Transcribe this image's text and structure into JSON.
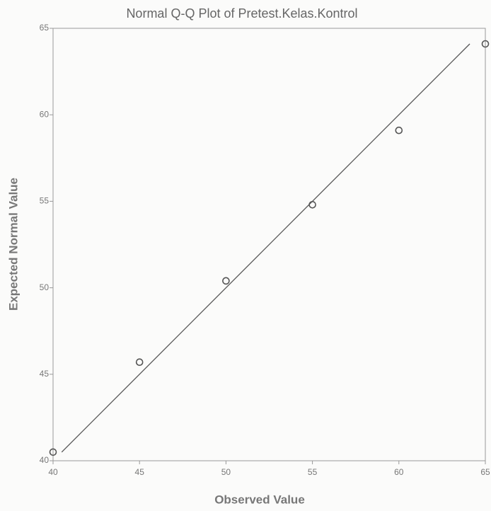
{
  "chart_data": {
    "type": "scatter",
    "title": "Normal Q-Q Plot of Pretest.Kelas.Kontrol",
    "x_label": "Observed Value",
    "y_label": "Expected Normal Value",
    "x": [
      40,
      45,
      50,
      55,
      60,
      65
    ],
    "values": [
      40.5,
      45.7,
      50.4,
      54.8,
      59.1,
      64.1
    ],
    "color": "#555555",
    "reference_line": {
      "x": [
        40.5,
        64.1
      ],
      "y": [
        40.5,
        64.1
      ],
      "color": "#555555"
    },
    "xlim": [
      40,
      65
    ],
    "xticks": [
      40,
      45,
      50,
      55,
      60,
      65
    ],
    "ylim": [
      40,
      65
    ],
    "yticks": [
      40,
      45,
      50,
      55,
      60,
      65
    ],
    "grid": false
  }
}
